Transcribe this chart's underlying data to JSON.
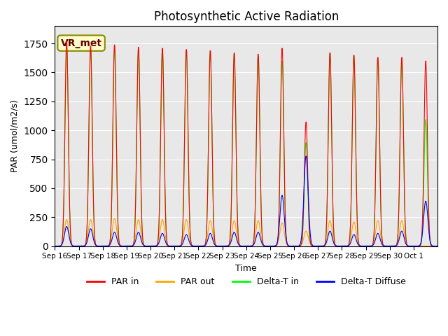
{
  "title": "Photosynthetic Active Radiation",
  "xlabel": "Time",
  "ylabel": "PAR (umol/m2/s)",
  "ylim": [
    0,
    1900
  ],
  "background_color": "#ffffff",
  "plot_bg_color": "#e8e8e8",
  "annotation_text": "VR_met",
  "x_tick_labels": [
    "Sep 16",
    "Sep 17",
    "Sep 18",
    "Sep 19",
    "Sep 20",
    "Sep 21",
    "Sep 22",
    "Sep 23",
    "Sep 24",
    "Sep 25",
    "Sep 26",
    "Sep 27",
    "Sep 28",
    "Sep 29",
    "Sep 30",
    "Oct 1"
  ],
  "num_days": 15,
  "par_in_peaks": [
    1780,
    1740,
    1750,
    1730,
    1720,
    1710,
    1700,
    1680,
    1670,
    1720,
    1080,
    1680,
    1660,
    1640,
    1640
  ],
  "par_out_peaks": [
    230,
    230,
    240,
    230,
    230,
    230,
    220,
    220,
    220,
    200,
    130,
    220,
    210,
    220,
    220
  ],
  "delta_t_peaks": [
    1740,
    1700,
    1700,
    1710,
    1710,
    1700,
    1690,
    1670,
    1650,
    1610,
    900,
    1680,
    1650,
    1640,
    1640
  ],
  "delta_diff_peaks": [
    170,
    150,
    120,
    120,
    110,
    100,
    110,
    120,
    120,
    440,
    780,
    130,
    100,
    110,
    130
  ],
  "last_day_par_in": 1610,
  "last_day_par_out": 0,
  "last_day_delta_t": 1100,
  "last_day_delta_diff": 390
}
